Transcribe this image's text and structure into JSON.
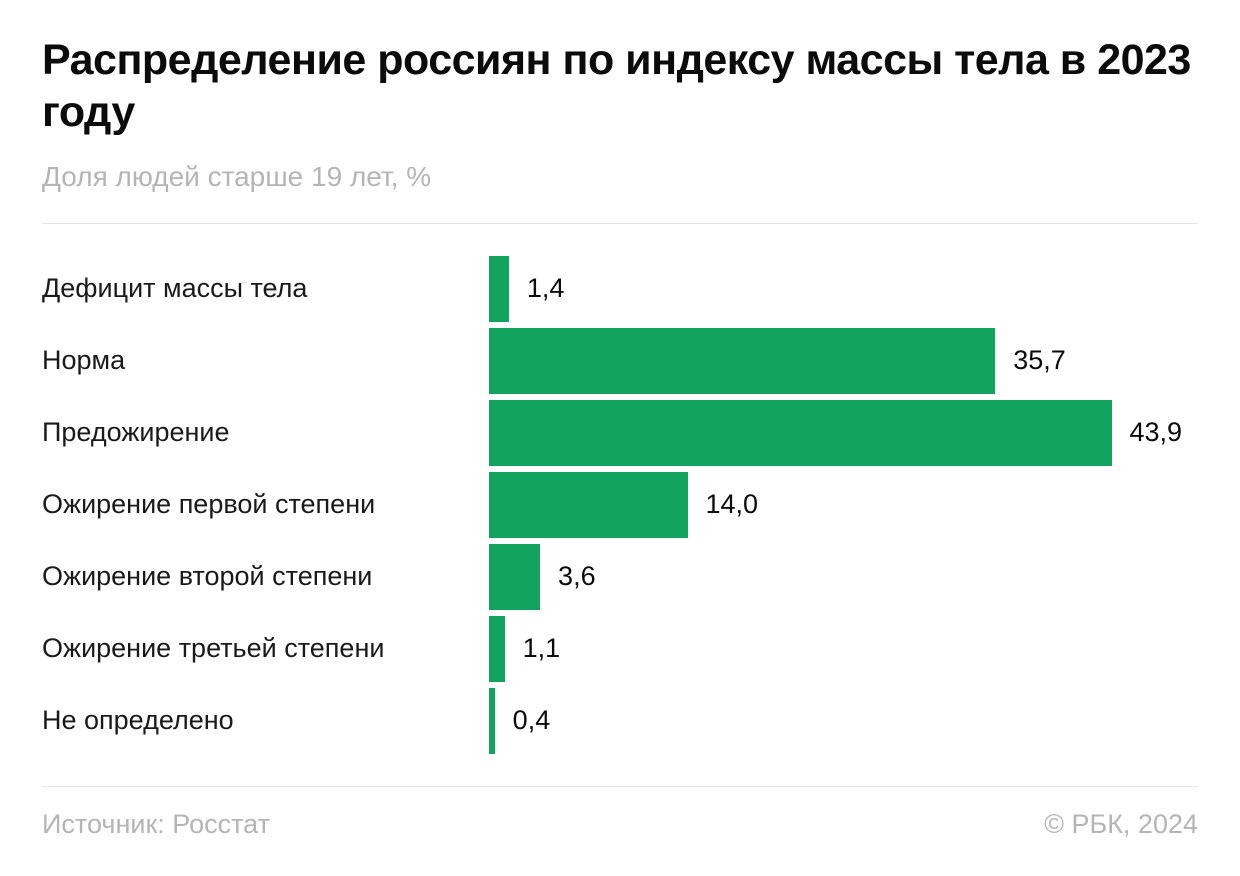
{
  "header": {
    "title": "Распределение россиян по индексу массы тела в 2023 году",
    "subtitle": "Доля людей старше 19 лет, %"
  },
  "footer": {
    "source": "Источник: Росстат",
    "copyright": "© РБК, 2024"
  },
  "colors": {
    "bar": "#12a35f",
    "title": "#0b0b0b",
    "muted_text": "#b5b5b5",
    "divider": "#e4e4e4"
  },
  "chart_data": {
    "type": "bar",
    "orientation": "horizontal",
    "title": "Распределение россиян по индексу массы тела в 2023 году",
    "subtitle": "Доля людей старше 19 лет, %",
    "xlabel": "",
    "ylabel": "",
    "xlim": [
      0,
      50
    ],
    "grid": false,
    "legend": "none",
    "categories": [
      "Дефицит массы тела",
      "Норма",
      "Предожирение",
      "Ожирение первой степени",
      "Ожирение второй степени",
      "Ожирение третьей степени",
      "Не определено"
    ],
    "values": [
      1.4,
      35.7,
      43.9,
      14.0,
      3.6,
      1.1,
      0.4
    ],
    "labels": [
      "1,4",
      "35,7",
      "43,9",
      "14,0",
      "3,6",
      "1,1",
      "0,4"
    ],
    "xmax": 50
  }
}
